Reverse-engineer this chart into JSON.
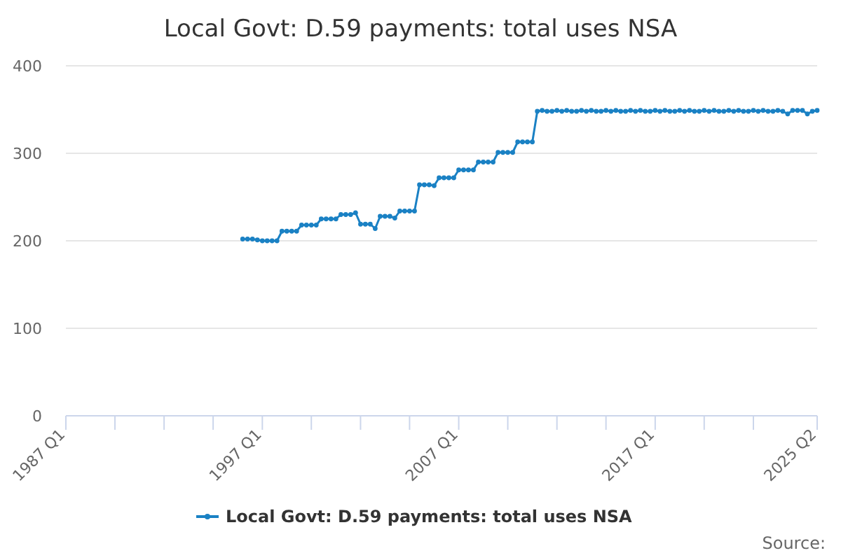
{
  "chart_data": {
    "type": "line",
    "title": "Local Govt: D.59 payments: total uses NSA",
    "x": [
      "1996-01",
      "1996-04",
      "1996-07",
      "1996-10",
      "1997-01",
      "1997-04",
      "1997-07",
      "1997-10",
      "1998-01",
      "1998-04",
      "1998-07",
      "1998-10",
      "1999-01",
      "1999-04",
      "1999-07",
      "1999-10",
      "2000-01",
      "2000-04",
      "2000-07",
      "2000-10",
      "2001-01",
      "2001-04",
      "2001-07",
      "2001-10",
      "2002-01",
      "2002-04",
      "2002-07",
      "2002-10",
      "2003-01",
      "2003-04",
      "2003-07",
      "2003-10",
      "2004-01",
      "2004-04",
      "2004-07",
      "2004-10",
      "2005-01",
      "2005-04",
      "2005-07",
      "2005-10",
      "2006-01",
      "2006-04",
      "2006-07",
      "2006-10",
      "2007-01",
      "2007-04",
      "2007-07",
      "2007-10",
      "2008-01",
      "2008-04",
      "2008-07",
      "2008-10",
      "2009-01",
      "2009-04",
      "2009-07",
      "2009-10",
      "2010-01",
      "2010-04",
      "2010-07",
      "2010-10",
      "2011-01",
      "2011-04",
      "2011-07",
      "2011-10",
      "2012-01",
      "2012-04",
      "2012-07",
      "2012-10",
      "2013-01",
      "2013-04",
      "2013-07",
      "2013-10",
      "2014-01",
      "2014-04",
      "2014-07",
      "2014-10",
      "2015-01",
      "2015-04",
      "2015-07",
      "2015-10",
      "2016-01",
      "2016-04",
      "2016-07",
      "2016-10",
      "2017-01",
      "2017-04",
      "2017-07",
      "2017-10",
      "2018-01",
      "2018-04",
      "2018-07",
      "2018-10",
      "2019-01",
      "2019-04",
      "2019-07",
      "2019-10",
      "2020-01",
      "2020-04",
      "2020-07",
      "2020-10",
      "2021-01",
      "2021-04",
      "2021-07",
      "2021-10",
      "2022-01",
      "2022-04",
      "2022-07",
      "2022-10",
      "2023-01",
      "2023-04",
      "2023-07",
      "2023-10",
      "2024-01",
      "2024-04",
      "2024-07",
      "2024-10",
      "2025-01",
      "2025-04"
    ],
    "series": [
      {
        "name": "Local Govt: D.59 payments: total uses NSA",
        "color": "#1a81c4",
        "values": [
          202,
          202,
          202,
          201,
          200,
          200,
          200,
          200,
          211,
          211,
          211,
          211,
          218,
          218,
          218,
          218,
          225,
          225,
          225,
          225,
          230,
          230,
          230,
          232,
          219,
          219,
          219,
          214,
          228,
          228,
          228,
          226,
          234,
          234,
          234,
          234,
          264,
          264,
          264,
          263,
          272,
          272,
          272,
          272,
          281,
          281,
          281,
          281,
          290,
          290,
          290,
          290,
          301,
          301,
          301,
          301,
          313,
          313,
          313,
          313,
          348,
          349,
          348,
          348,
          349,
          348,
          349,
          348,
          348,
          349,
          348,
          349,
          348,
          348,
          349,
          348,
          349,
          348,
          348,
          349,
          348,
          349,
          348,
          348,
          349,
          348,
          349,
          348,
          348,
          349,
          348,
          349,
          348,
          348,
          349,
          348,
          349,
          348,
          348,
          349,
          348,
          349,
          348,
          348,
          349,
          348,
          349,
          348,
          348,
          349,
          348,
          345,
          349,
          349,
          349,
          345,
          348,
          349
        ]
      }
    ],
    "xlim": [
      "1987-01",
      "2025-04"
    ],
    "xticks": [
      {
        "value": "1987-01",
        "label": "1987 Q1"
      },
      {
        "value": "1989-07",
        "label": null
      },
      {
        "value": "1992-01",
        "label": null
      },
      {
        "value": "1994-07",
        "label": null
      },
      {
        "value": "1997-01",
        "label": "1997 Q1"
      },
      {
        "value": "1999-07",
        "label": null
      },
      {
        "value": "2002-01",
        "label": null
      },
      {
        "value": "2004-07",
        "label": null
      },
      {
        "value": "2007-01",
        "label": "2007 Q1"
      },
      {
        "value": "2009-07",
        "label": null
      },
      {
        "value": "2012-01",
        "label": null
      },
      {
        "value": "2014-07",
        "label": null
      },
      {
        "value": "2017-01",
        "label": "2017 Q1"
      },
      {
        "value": "2019-07",
        "label": null
      },
      {
        "value": "2022-01",
        "label": null
      },
      {
        "value": "2025-04",
        "label": "2025 Q2"
      }
    ],
    "ylim": [
      0,
      400
    ],
    "yticks": [
      0,
      100,
      200,
      300,
      400
    ],
    "grid": "y",
    "legend": "bottom",
    "marker": "circle",
    "line_style": "solid",
    "annotations": [
      "Source:"
    ]
  }
}
